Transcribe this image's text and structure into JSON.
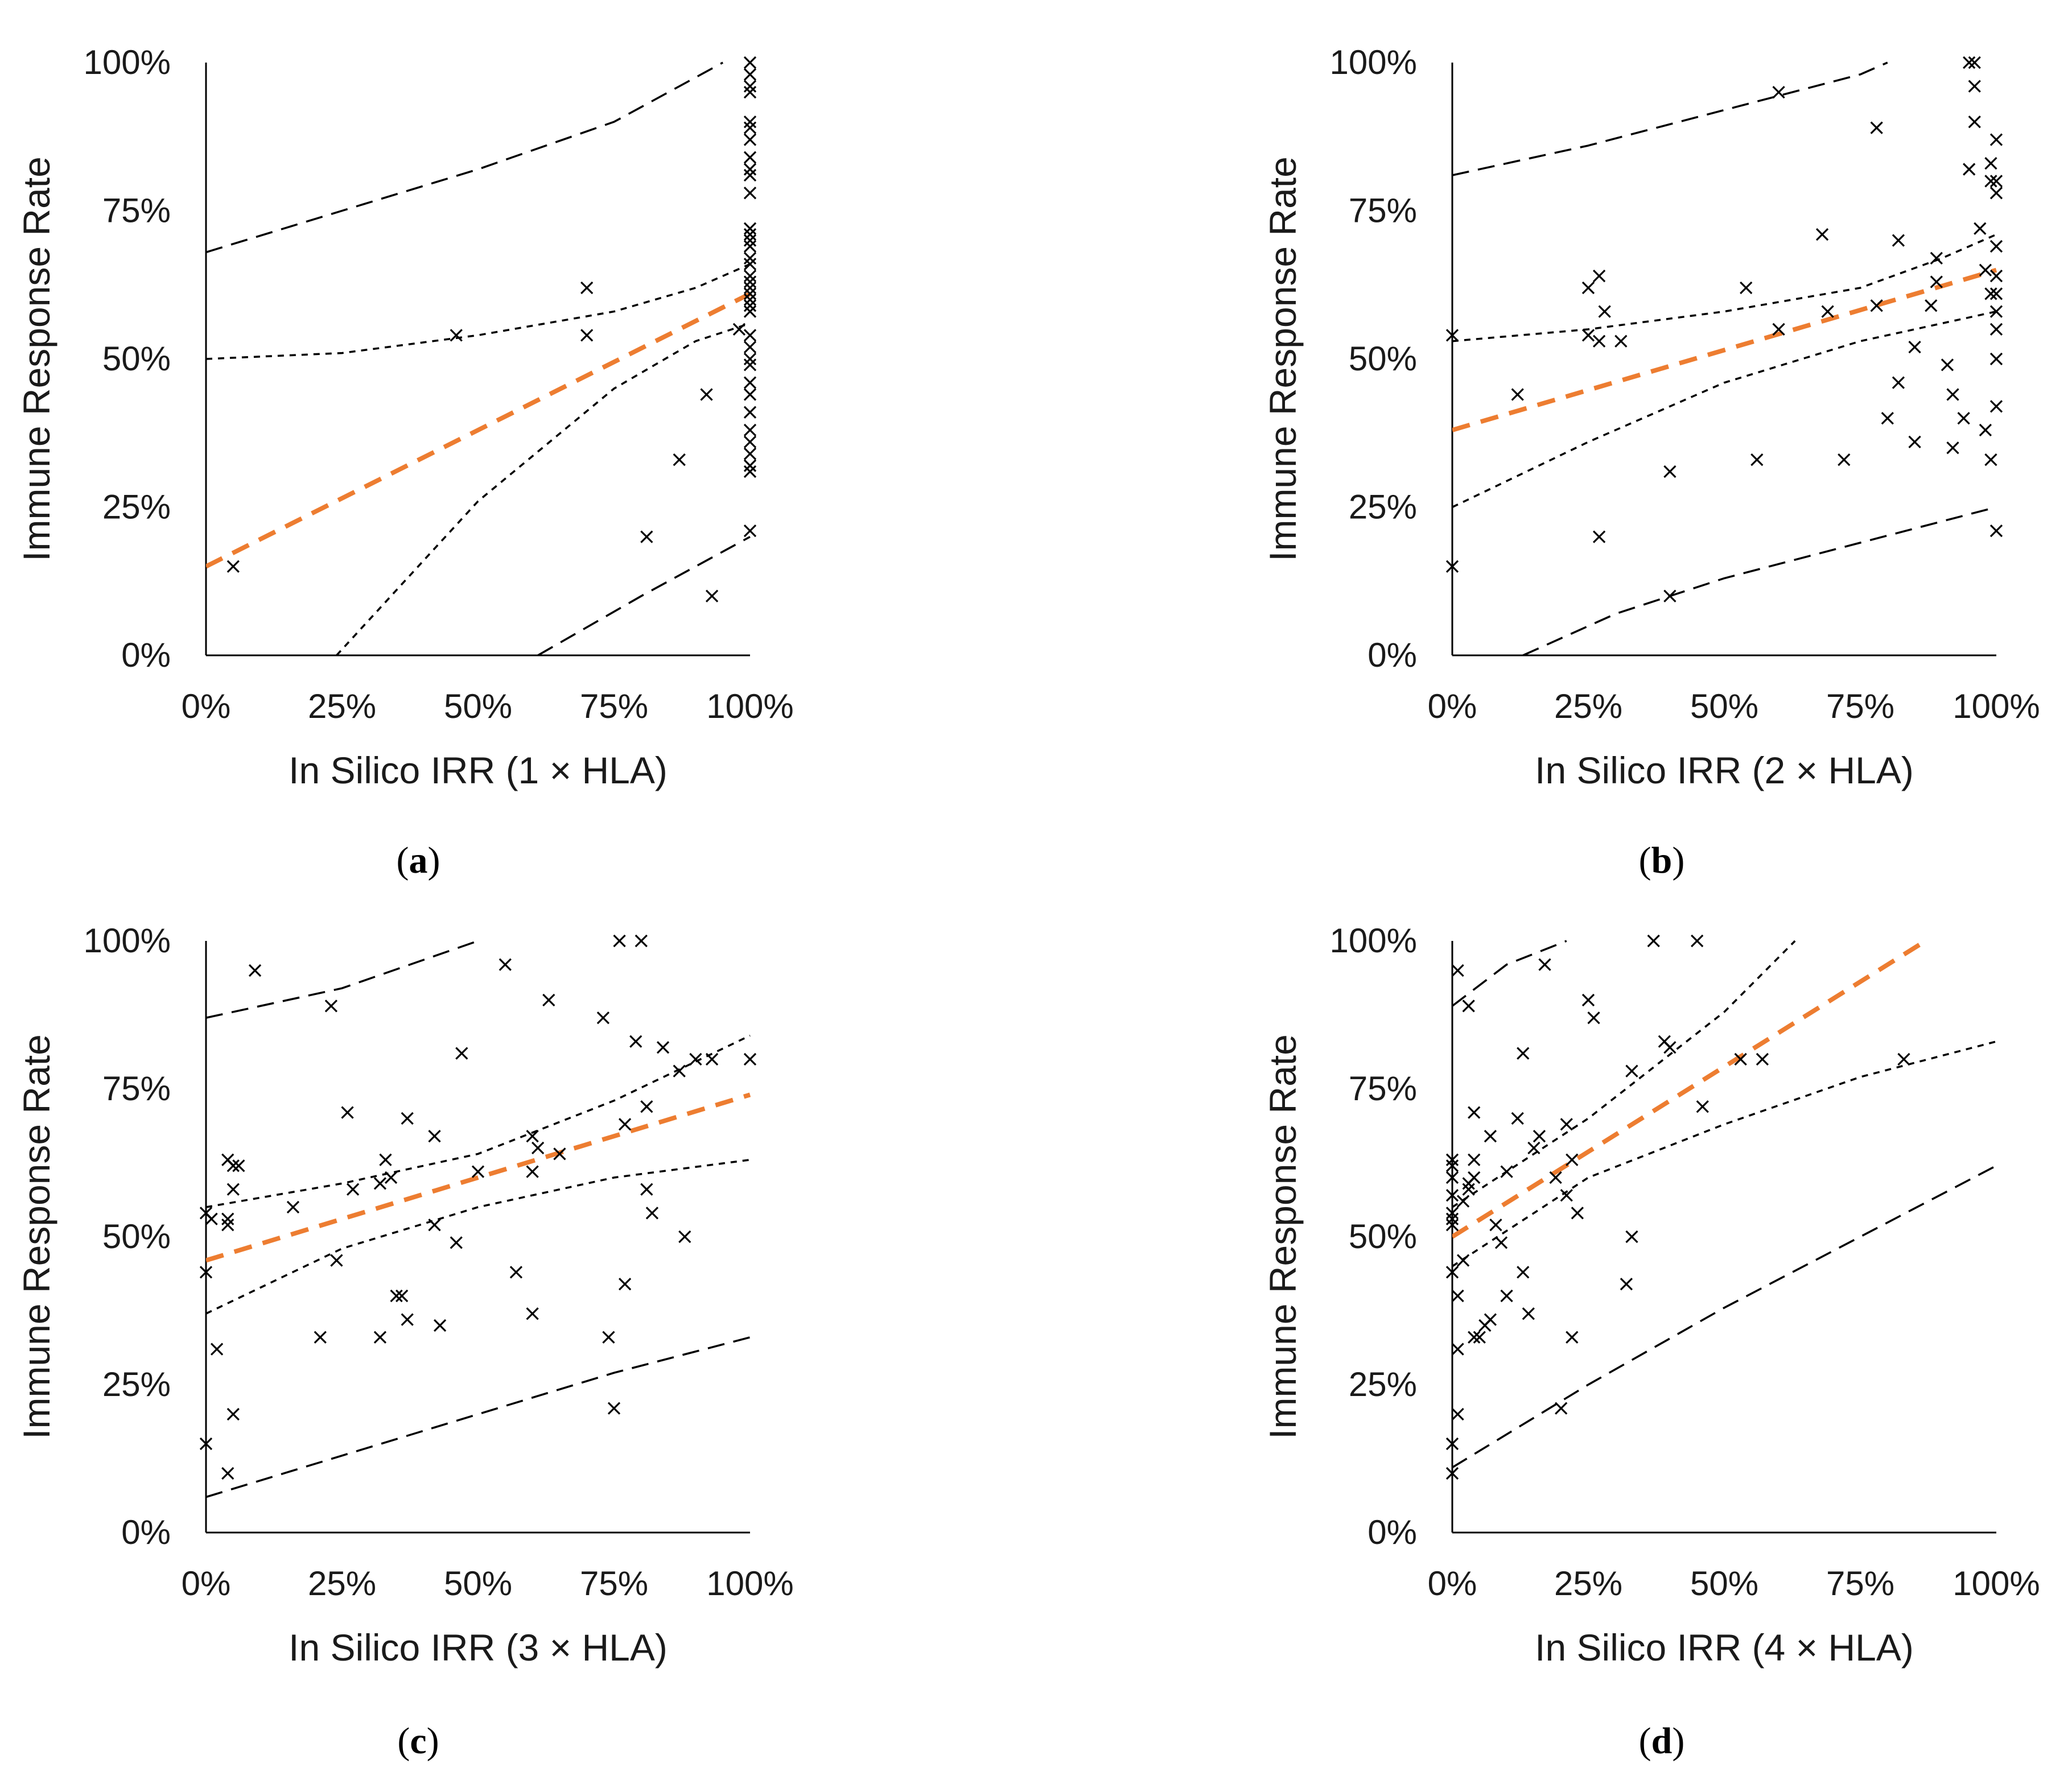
{
  "figure": {
    "y_tick_labels": [
      "0%",
      "25%",
      "50%",
      "75%",
      "100%"
    ],
    "x_tick_labels": [
      "0%",
      "25%",
      "50%",
      "75%",
      "100%"
    ],
    "colors": {
      "trend": "#ED7D31",
      "points": "#000000",
      "interval": "#000000",
      "axis": "#000000"
    }
  },
  "chart_data": [
    {
      "type": "scatter",
      "panel_label": "a",
      "xlabel": "In Silico IRR (1 × HLA)",
      "ylabel": "Immune Response Rate",
      "xlim": [
        0,
        100
      ],
      "ylim": [
        0,
        100
      ],
      "points": [
        [
          5,
          15
        ],
        [
          46,
          54
        ],
        [
          70,
          62
        ],
        [
          70,
          54
        ],
        [
          81,
          20
        ],
        [
          87,
          33
        ],
        [
          92,
          44
        ],
        [
          93,
          10
        ],
        [
          98,
          55
        ],
        [
          100,
          100
        ],
        [
          100,
          98
        ],
        [
          100,
          96
        ],
        [
          100,
          95
        ],
        [
          100,
          90
        ],
        [
          100,
          89
        ],
        [
          100,
          87
        ],
        [
          100,
          84
        ],
        [
          100,
          82
        ],
        [
          100,
          81
        ],
        [
          100,
          78
        ],
        [
          100,
          72
        ],
        [
          100,
          71
        ],
        [
          100,
          70
        ],
        [
          100,
          69
        ],
        [
          100,
          67
        ],
        [
          100,
          66
        ],
        [
          100,
          64
        ],
        [
          100,
          63
        ],
        [
          100,
          62
        ],
        [
          100,
          61
        ],
        [
          100,
          60
        ],
        [
          100,
          59
        ],
        [
          100,
          58
        ],
        [
          100,
          54
        ],
        [
          100,
          52
        ],
        [
          100,
          50
        ],
        [
          100,
          49
        ],
        [
          100,
          46
        ],
        [
          100,
          44
        ],
        [
          100,
          41
        ],
        [
          100,
          38
        ],
        [
          100,
          36
        ],
        [
          100,
          34
        ],
        [
          100,
          32
        ],
        [
          100,
          31
        ],
        [
          100,
          21
        ]
      ],
      "trend": [
        [
          0,
          15
        ],
        [
          100,
          61
        ]
      ],
      "ci_upper": [
        [
          0,
          50
        ],
        [
          25,
          51
        ],
        [
          50,
          54
        ],
        [
          75,
          58
        ],
        [
          90,
          62
        ],
        [
          100,
          66
        ]
      ],
      "ci_lower": [
        [
          24,
          0
        ],
        [
          50,
          26
        ],
        [
          75,
          45
        ],
        [
          90,
          53
        ],
        [
          100,
          56
        ]
      ],
      "pi_upper": [
        [
          0,
          68
        ],
        [
          25,
          75
        ],
        [
          50,
          82
        ],
        [
          75,
          90
        ],
        [
          95,
          100
        ]
      ],
      "pi_lower": [
        [
          61,
          0
        ],
        [
          80,
          10
        ],
        [
          100,
          20
        ]
      ]
    },
    {
      "type": "scatter",
      "panel_label": "b",
      "xlabel": "In Silico IRR (2 × HLA)",
      "ylabel": "Immune Response Rate",
      "xlim": [
        0,
        100
      ],
      "ylim": [
        0,
        100
      ],
      "points": [
        [
          0,
          54
        ],
        [
          0,
          15
        ],
        [
          12,
          44
        ],
        [
          25,
          62
        ],
        [
          25,
          54
        ],
        [
          27,
          53
        ],
        [
          27,
          64
        ],
        [
          27,
          20
        ],
        [
          28,
          58
        ],
        [
          31,
          53
        ],
        [
          40,
          31
        ],
        [
          40,
          10
        ],
        [
          54,
          62
        ],
        [
          56,
          33
        ],
        [
          60,
          95
        ],
        [
          60,
          55
        ],
        [
          68,
          71
        ],
        [
          69,
          58
        ],
        [
          72,
          33
        ],
        [
          78,
          89
        ],
        [
          78,
          59
        ],
        [
          80,
          40
        ],
        [
          82,
          46
        ],
        [
          82,
          70
        ],
        [
          85,
          52
        ],
        [
          85,
          36
        ],
        [
          88,
          59
        ],
        [
          89,
          67
        ],
        [
          89,
          63
        ],
        [
          91,
          49
        ],
        [
          92,
          35
        ],
        [
          92,
          44
        ],
        [
          94,
          40
        ],
        [
          95,
          82
        ],
        [
          95,
          100
        ],
        [
          96,
          96
        ],
        [
          96,
          100
        ],
        [
          96,
          90
        ],
        [
          97,
          72
        ],
        [
          98,
          38
        ],
        [
          98,
          65
        ],
        [
          99,
          80
        ],
        [
          99,
          83
        ],
        [
          99,
          61
        ],
        [
          99,
          33
        ],
        [
          100,
          87
        ],
        [
          100,
          80
        ],
        [
          100,
          78
        ],
        [
          100,
          69
        ],
        [
          100,
          64
        ],
        [
          100,
          61
        ],
        [
          100,
          58
        ],
        [
          100,
          55
        ],
        [
          100,
          50
        ],
        [
          100,
          42
        ],
        [
          100,
          21
        ]
      ],
      "trend": [
        [
          0,
          38
        ],
        [
          100,
          65
        ]
      ],
      "ci_upper": [
        [
          0,
          53
        ],
        [
          25,
          55
        ],
        [
          50,
          58
        ],
        [
          75,
          62
        ],
        [
          90,
          67
        ],
        [
          100,
          71
        ]
      ],
      "ci_lower": [
        [
          0,
          25
        ],
        [
          25,
          36
        ],
        [
          50,
          46
        ],
        [
          75,
          53
        ],
        [
          100,
          58
        ]
      ],
      "pi_upper": [
        [
          0,
          81
        ],
        [
          25,
          86
        ],
        [
          50,
          92
        ],
        [
          75,
          98
        ],
        [
          80,
          100
        ]
      ],
      "pi_lower": [
        [
          13,
          0
        ],
        [
          30,
          7
        ],
        [
          50,
          13
        ],
        [
          75,
          19
        ],
        [
          100,
          25
        ]
      ]
    },
    {
      "type": "scatter",
      "panel_label": "c",
      "xlabel": "In Silico IRR (3 × HLA)",
      "ylabel": "Immune Response Rate",
      "xlim": [
        0,
        100
      ],
      "ylim": [
        0,
        100
      ],
      "points": [
        [
          0,
          54
        ],
        [
          0,
          44
        ],
        [
          0,
          15
        ],
        [
          1,
          53
        ],
        [
          2,
          31
        ],
        [
          4,
          63
        ],
        [
          4,
          53
        ],
        [
          4,
          52
        ],
        [
          4,
          10
        ],
        [
          5,
          62
        ],
        [
          5,
          58
        ],
        [
          5,
          20
        ],
        [
          6,
          62
        ],
        [
          9,
          95
        ],
        [
          16,
          55
        ],
        [
          21,
          33
        ],
        [
          23,
          89
        ],
        [
          24,
          46
        ],
        [
          26,
          71
        ],
        [
          27,
          58
        ],
        [
          32,
          33
        ],
        [
          32,
          59
        ],
        [
          33,
          63
        ],
        [
          34,
          60
        ],
        [
          35,
          40
        ],
        [
          36,
          40
        ],
        [
          37,
          70
        ],
        [
          37,
          36
        ],
        [
          42,
          67
        ],
        [
          42,
          52
        ],
        [
          43,
          35
        ],
        [
          46,
          49
        ],
        [
          47,
          81
        ],
        [
          50,
          61
        ],
        [
          55,
          96
        ],
        [
          57,
          44
        ],
        [
          60,
          61
        ],
        [
          60,
          67
        ],
        [
          60,
          37
        ],
        [
          61,
          65
        ],
        [
          63,
          90
        ],
        [
          65,
          64
        ],
        [
          73,
          87
        ],
        [
          74,
          33
        ],
        [
          75,
          21
        ],
        [
          76,
          100
        ],
        [
          77,
          42
        ],
        [
          77,
          69
        ],
        [
          79,
          83
        ],
        [
          80,
          100
        ],
        [
          81,
          72
        ],
        [
          81,
          58
        ],
        [
          82,
          54
        ],
        [
          84,
          82
        ],
        [
          87,
          78
        ],
        [
          88,
          50
        ],
        [
          90,
          80
        ],
        [
          93,
          80
        ],
        [
          100,
          80
        ]
      ],
      "trend": [
        [
          0,
          46
        ],
        [
          100,
          74
        ]
      ],
      "ci_upper": [
        [
          0,
          55
        ],
        [
          25,
          59
        ],
        [
          50,
          64
        ],
        [
          75,
          73
        ],
        [
          100,
          84
        ]
      ],
      "ci_lower": [
        [
          0,
          37
        ],
        [
          25,
          48
        ],
        [
          50,
          55
        ],
        [
          75,
          60
        ],
        [
          100,
          63
        ]
      ],
      "pi_upper": [
        [
          0,
          87
        ],
        [
          25,
          92
        ],
        [
          50,
          100
        ]
      ],
      "pi_lower": [
        [
          0,
          6
        ],
        [
          25,
          13
        ],
        [
          50,
          20
        ],
        [
          75,
          27
        ],
        [
          100,
          33
        ]
      ]
    },
    {
      "type": "scatter",
      "panel_label": "d",
      "xlabel": "In Silico IRR (4 × HLA)",
      "ylabel": "Immune Response Rate",
      "xlim": [
        0,
        100
      ],
      "ylim": [
        0,
        100
      ],
      "points": [
        [
          0,
          63
        ],
        [
          0,
          62
        ],
        [
          0,
          60
        ],
        [
          0,
          57
        ],
        [
          0,
          54
        ],
        [
          0,
          53
        ],
        [
          0,
          52
        ],
        [
          0,
          44
        ],
        [
          0,
          15
        ],
        [
          0,
          10
        ],
        [
          1,
          95
        ],
        [
          1,
          31
        ],
        [
          1,
          20
        ],
        [
          1,
          40
        ],
        [
          2,
          56
        ],
        [
          2,
          46
        ],
        [
          3,
          89
        ],
        [
          3,
          59
        ],
        [
          3,
          58
        ],
        [
          4,
          71
        ],
        [
          4,
          63
        ],
        [
          4,
          60
        ],
        [
          4,
          33
        ],
        [
          5,
          33
        ],
        [
          6,
          35
        ],
        [
          7,
          36
        ],
        [
          7,
          67
        ],
        [
          8,
          52
        ],
        [
          9,
          49
        ],
        [
          10,
          61
        ],
        [
          10,
          40
        ],
        [
          12,
          70
        ],
        [
          13,
          81
        ],
        [
          13,
          44
        ],
        [
          14,
          37
        ],
        [
          15,
          65
        ],
        [
          16,
          67
        ],
        [
          17,
          96
        ],
        [
          19,
          60
        ],
        [
          20,
          21
        ],
        [
          21,
          69
        ],
        [
          21,
          57
        ],
        [
          22,
          33
        ],
        [
          22,
          63
        ],
        [
          23,
          54
        ],
        [
          25,
          90
        ],
        [
          26,
          87
        ],
        [
          32,
          42
        ],
        [
          33,
          50
        ],
        [
          33,
          78
        ],
        [
          37,
          100
        ],
        [
          39,
          83
        ],
        [
          40,
          82
        ],
        [
          45,
          100
        ],
        [
          46,
          72
        ],
        [
          53,
          80
        ],
        [
          57,
          80
        ],
        [
          83,
          80
        ]
      ],
      "trend": [
        [
          0,
          50
        ],
        [
          87,
          100
        ]
      ],
      "ci_upper": [
        [
          0,
          55
        ],
        [
          25,
          70
        ],
        [
          50,
          88
        ],
        [
          63,
          100
        ]
      ],
      "ci_lower": [
        [
          0,
          45
        ],
        [
          25,
          60
        ],
        [
          50,
          69
        ],
        [
          75,
          77
        ],
        [
          100,
          83
        ]
      ],
      "pi_upper": [
        [
          0,
          89
        ],
        [
          10,
          96
        ],
        [
          21,
          100
        ]
      ],
      "pi_lower": [
        [
          0,
          11
        ],
        [
          25,
          25
        ],
        [
          50,
          38
        ],
        [
          75,
          50
        ],
        [
          100,
          62
        ]
      ]
    }
  ]
}
